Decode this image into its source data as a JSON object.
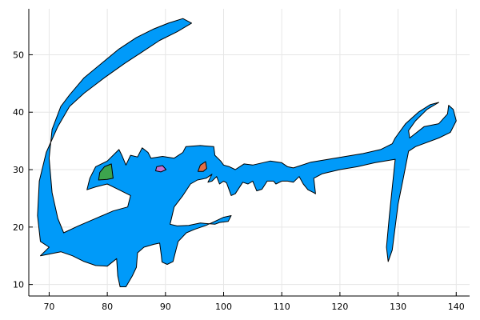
{
  "chart_data": {
    "type": "area",
    "title": "",
    "xlabel": "",
    "ylabel": "",
    "xlim": [
      66.5,
      142.3
    ],
    "ylim": [
      8.0,
      58.0
    ],
    "grid": true,
    "legend": "none",
    "x_ticks": [
      70,
      80,
      90,
      100,
      110,
      120,
      130,
      140
    ],
    "y_ticks": [
      10,
      20,
      30,
      40,
      50
    ],
    "x_tick_labels": [
      "70",
      "80",
      "90",
      "100",
      "110",
      "120",
      "130",
      "140"
    ],
    "y_tick_labels": [
      "10",
      "20",
      "30",
      "40",
      "50"
    ],
    "series": [
      {
        "color": "#009af9",
        "points": [
          [
            68.5,
            15.0
          ],
          [
            72.0,
            15.7
          ],
          [
            74.0,
            15.0
          ],
          [
            76.0,
            14.0
          ],
          [
            78.0,
            13.3
          ],
          [
            80.0,
            13.2
          ],
          [
            81.6,
            14.5
          ],
          [
            81.8,
            11.5
          ],
          [
            82.2,
            9.6
          ],
          [
            83.2,
            9.6
          ],
          [
            84.3,
            11.5
          ],
          [
            85.0,
            13.0
          ],
          [
            85.2,
            15.5
          ],
          [
            86.3,
            16.5
          ],
          [
            88.0,
            17.0
          ],
          [
            89.0,
            17.2
          ],
          [
            89.3,
            15.0
          ],
          [
            89.4,
            13.9
          ],
          [
            90.3,
            13.5
          ],
          [
            91.3,
            14.0
          ],
          [
            91.8,
            16.0
          ],
          [
            92.2,
            17.5
          ],
          [
            93.6,
            19.0
          ],
          [
            95.0,
            19.6
          ],
          [
            97.0,
            20.3
          ],
          [
            98.5,
            21.0
          ],
          [
            100.0,
            21.7
          ],
          [
            101.3,
            22.0
          ],
          [
            100.8,
            21.0
          ],
          [
            99.3,
            20.8
          ],
          [
            98.5,
            20.5
          ],
          [
            96.0,
            20.7
          ],
          [
            94.0,
            20.3
          ],
          [
            92.0,
            20.2
          ],
          [
            90.8,
            20.5
          ],
          [
            91.5,
            23.5
          ],
          [
            93.0,
            25.5
          ],
          [
            94.3,
            27.5
          ],
          [
            95.5,
            28.2
          ],
          [
            97.0,
            28.5
          ],
          [
            98.0,
            29.2
          ],
          [
            97.3,
            27.8
          ],
          [
            98.0,
            28.0
          ],
          [
            98.8,
            28.8
          ],
          [
            99.3,
            27.5
          ],
          [
            100.0,
            28.0
          ],
          [
            100.5,
            27.7
          ],
          [
            101.3,
            25.5
          ],
          [
            102.0,
            25.8
          ],
          [
            103.3,
            27.8
          ],
          [
            104.2,
            27.5
          ],
          [
            105.0,
            28.0
          ],
          [
            105.7,
            26.3
          ],
          [
            106.6,
            26.6
          ],
          [
            107.5,
            28.0
          ],
          [
            108.6,
            28.0
          ],
          [
            109.0,
            27.5
          ],
          [
            110.0,
            28.0
          ],
          [
            111.0,
            28.0
          ],
          [
            112.0,
            27.8
          ],
          [
            113.0,
            28.8
          ],
          [
            113.7,
            27.5
          ],
          [
            114.5,
            26.5
          ],
          [
            115.5,
            26.0
          ],
          [
            115.8,
            25.8
          ],
          [
            115.5,
            28.5
          ],
          [
            117.0,
            29.3
          ],
          [
            120.0,
            30.0
          ],
          [
            123.0,
            30.5
          ],
          [
            126.0,
            31.2
          ],
          [
            129.5,
            31.8
          ],
          [
            128.5,
            22.0
          ],
          [
            128.0,
            16.5
          ],
          [
            128.3,
            14.0
          ],
          [
            129.0,
            16.0
          ],
          [
            130.0,
            24.0
          ],
          [
            130.8,
            28.0
          ],
          [
            131.8,
            33.2
          ],
          [
            133.0,
            34.0
          ],
          [
            137.0,
            35.5
          ],
          [
            139.0,
            36.5
          ],
          [
            140.0,
            38.5
          ],
          [
            139.5,
            40.5
          ],
          [
            138.7,
            41.2
          ],
          [
            138.5,
            39.7
          ],
          [
            137.0,
            38.0
          ],
          [
            134.5,
            37.5
          ],
          [
            132.0,
            35.5
          ],
          [
            131.8,
            36.8
          ],
          [
            133.0,
            38.5
          ],
          [
            135.0,
            40.5
          ],
          [
            137.0,
            41.7
          ],
          [
            135.5,
            41.3
          ],
          [
            133.5,
            40.0
          ],
          [
            131.3,
            38.0
          ],
          [
            129.5,
            35.5
          ],
          [
            129.0,
            34.5
          ],
          [
            127.0,
            33.5
          ],
          [
            124.0,
            32.8
          ],
          [
            121.0,
            32.3
          ],
          [
            118.0,
            31.8
          ],
          [
            115.0,
            31.3
          ],
          [
            112.0,
            30.3
          ],
          [
            111.0,
            30.5
          ],
          [
            110.0,
            31.2
          ],
          [
            108.0,
            31.5
          ],
          [
            105.0,
            30.8
          ],
          [
            103.5,
            31.0
          ],
          [
            102.0,
            30.0
          ],
          [
            101.0,
            30.5
          ],
          [
            100.0,
            30.8
          ],
          [
            99.5,
            31.5
          ],
          [
            98.5,
            32.5
          ],
          [
            98.3,
            34.0
          ],
          [
            96.0,
            34.2
          ],
          [
            93.5,
            34.0
          ],
          [
            93.0,
            33.0
          ],
          [
            91.5,
            32.0
          ],
          [
            89.5,
            32.3
          ],
          [
            87.5,
            32.0
          ],
          [
            87.0,
            33.0
          ],
          [
            86.0,
            33.8
          ],
          [
            85.2,
            32.2
          ],
          [
            84.0,
            32.5
          ],
          [
            83.2,
            30.8
          ],
          [
            82.5,
            32.5
          ],
          [
            82.0,
            33.5
          ],
          [
            80.0,
            31.5
          ],
          [
            78.0,
            30.5
          ],
          [
            77.0,
            28.5
          ],
          [
            76.5,
            26.5
          ],
          [
            78.0,
            27.0
          ],
          [
            80.0,
            27.5
          ],
          [
            82.0,
            26.5
          ],
          [
            84.0,
            25.5
          ],
          [
            83.5,
            23.5
          ],
          [
            81.0,
            22.8
          ],
          [
            78.0,
            21.5
          ],
          [
            75.0,
            20.2
          ],
          [
            72.5,
            19.0
          ],
          [
            71.5,
            21.5
          ],
          [
            70.5,
            26.0
          ],
          [
            70.0,
            32.0
          ],
          [
            70.5,
            37.0
          ],
          [
            72.0,
            41.0
          ],
          [
            73.5,
            43.0
          ],
          [
            76.0,
            46.0
          ],
          [
            79.0,
            48.5
          ],
          [
            82.0,
            51.0
          ],
          [
            85.0,
            53.0
          ],
          [
            88.0,
            54.5
          ],
          [
            90.5,
            55.5
          ],
          [
            93.0,
            56.3
          ],
          [
            94.5,
            55.5
          ],
          [
            92.0,
            54.0
          ],
          [
            89.0,
            52.5
          ],
          [
            86.0,
            50.5
          ],
          [
            83.0,
            48.5
          ],
          [
            79.5,
            46.0
          ],
          [
            76.0,
            43.3
          ],
          [
            73.5,
            41.0
          ],
          [
            71.5,
            37.5
          ],
          [
            69.5,
            33.0
          ],
          [
            68.3,
            28.0
          ],
          [
            68.0,
            22.0
          ],
          [
            68.5,
            17.5
          ],
          [
            70.0,
            16.5
          ],
          [
            68.5,
            15.0
          ]
        ]
      },
      {
        "color": "#3da44d",
        "points": [
          [
            78.5,
            28.2
          ],
          [
            78.7,
            29.5
          ],
          [
            79.5,
            30.5
          ],
          [
            80.7,
            31.0
          ],
          [
            81.0,
            28.5
          ],
          [
            80.0,
            28.3
          ],
          [
            78.5,
            28.2
          ]
        ]
      },
      {
        "color": "#c271d2",
        "points": [
          [
            88.3,
            29.8
          ],
          [
            88.5,
            30.5
          ],
          [
            89.5,
            30.7
          ],
          [
            90.1,
            30.0
          ],
          [
            89.2,
            29.6
          ],
          [
            88.3,
            29.8
          ]
        ]
      },
      {
        "color": "#e26f46",
        "points": [
          [
            95.6,
            29.7
          ],
          [
            96.0,
            30.8
          ],
          [
            96.9,
            31.4
          ],
          [
            97.1,
            30.2
          ],
          [
            96.5,
            29.7
          ],
          [
            95.6,
            29.7
          ]
        ]
      }
    ]
  }
}
